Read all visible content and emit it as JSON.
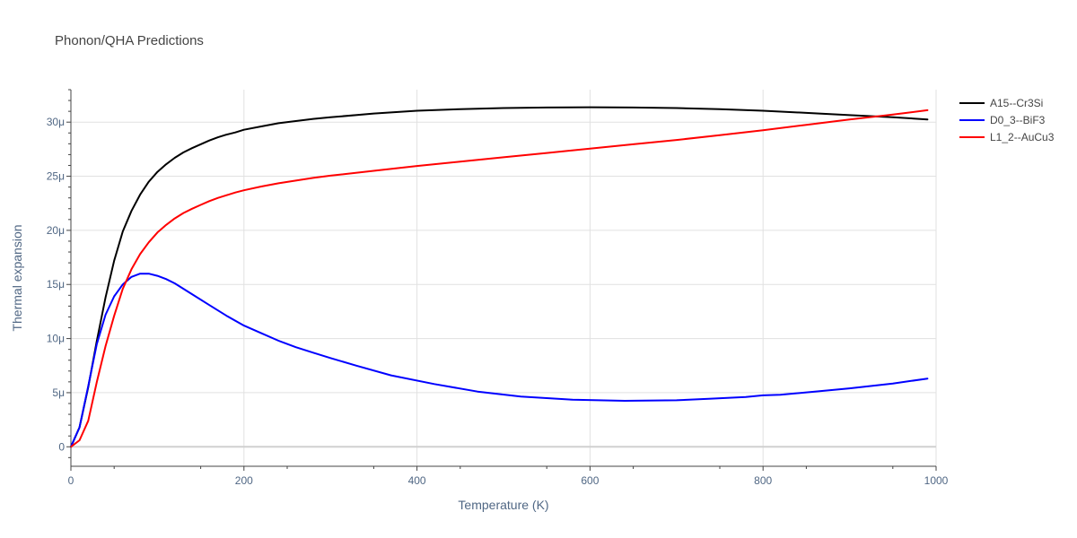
{
  "chart_data": {
    "type": "line",
    "title": "Phonon/QHA Predictions",
    "xlabel": "Temperature (K)",
    "ylabel": "Thermal expansion",
    "xlim": [
      0,
      1000
    ],
    "ylim": [
      -1.8e-06,
      3.3e-05
    ],
    "x_ticks": [
      0,
      200,
      400,
      600,
      800,
      1000
    ],
    "x_tick_labels": [
      "0",
      "200",
      "400",
      "600",
      "800",
      "1000"
    ],
    "y_ticks": [
      0,
      5e-06,
      1e-05,
      1.5e-05,
      2e-05,
      2.5e-05,
      3e-05
    ],
    "y_tick_labels": [
      "0",
      "5μ",
      "10μ",
      "15μ",
      "20μ",
      "25μ",
      "30μ"
    ],
    "grid": true,
    "legend_position": "top-right",
    "series": [
      {
        "name": "A15--Cr3Si",
        "color": "#000000",
        "x": [
          0,
          10,
          20,
          30,
          40,
          50,
          60,
          70,
          80,
          90,
          100,
          110,
          120,
          130,
          140,
          150,
          160,
          170,
          180,
          190,
          200,
          220,
          240,
          260,
          280,
          300,
          350,
          400,
          450,
          500,
          550,
          600,
          650,
          700,
          750,
          800,
          850,
          900,
          950,
          990
        ],
        "y": [
          0,
          1.8e-06,
          5.5e-06,
          9.8e-06,
          1.38e-05,
          1.72e-05,
          1.99e-05,
          2.18e-05,
          2.33e-05,
          2.45e-05,
          2.54e-05,
          2.61e-05,
          2.67e-05,
          2.72e-05,
          2.76e-05,
          2.795e-05,
          2.83e-05,
          2.86e-05,
          2.885e-05,
          2.905e-05,
          2.93e-05,
          2.96e-05,
          2.99e-05,
          3.01e-05,
          3.03e-05,
          3.045e-05,
          3.08e-05,
          3.105e-05,
          3.12e-05,
          3.13e-05,
          3.135e-05,
          3.138e-05,
          3.135e-05,
          3.13e-05,
          3.12e-05,
          3.105e-05,
          3.085e-05,
          3.065e-05,
          3.045e-05,
          3.025e-05
        ]
      },
      {
        "name": "D0_3--BiF3",
        "color": "#0000ff",
        "x": [
          0,
          10,
          20,
          30,
          40,
          50,
          60,
          70,
          80,
          90,
          100,
          110,
          120,
          140,
          160,
          180,
          200,
          220,
          240,
          260,
          280,
          300,
          330,
          370,
          420,
          470,
          520,
          580,
          640,
          700,
          740,
          780,
          800,
          820,
          860,
          900,
          950,
          990
        ],
        "y": [
          0,
          1.8e-06,
          5.6e-06,
          9.5e-06,
          1.22e-05,
          1.39e-05,
          1.5e-05,
          1.57e-05,
          1.6e-05,
          1.6e-05,
          1.58e-05,
          1.55e-05,
          1.51e-05,
          1.41e-05,
          1.31e-05,
          1.21e-05,
          1.12e-05,
          1.05e-05,
          9.8e-06,
          9.2e-06,
          8.7e-06,
          8.2e-06,
          7.5e-06,
          6.6e-06,
          5.8e-06,
          5.1e-06,
          4.65e-06,
          4.35e-06,
          4.25e-06,
          4.3e-06,
          4.45e-06,
          4.6e-06,
          4.75e-06,
          4.8e-06,
          5.1e-06,
          5.4e-06,
          5.85e-06,
          6.3e-06
        ]
      },
      {
        "name": "L1_2--AuCu3",
        "color": "#ff0000",
        "x": [
          0,
          10,
          20,
          30,
          40,
          50,
          60,
          70,
          80,
          90,
          100,
          110,
          120,
          130,
          140,
          150,
          160,
          170,
          180,
          190,
          200,
          220,
          240,
          260,
          280,
          300,
          350,
          400,
          450,
          500,
          550,
          600,
          650,
          700,
          750,
          800,
          850,
          900,
          950,
          990
        ],
        "y": [
          0,
          6e-07,
          2.4e-06,
          6e-06,
          9.3e-06,
          1.21e-05,
          1.46e-05,
          1.64e-05,
          1.78e-05,
          1.89e-05,
          1.98e-05,
          2.05e-05,
          2.11e-05,
          2.16e-05,
          2.2e-05,
          2.235e-05,
          2.27e-05,
          2.3e-05,
          2.325e-05,
          2.35e-05,
          2.37e-05,
          2.405e-05,
          2.435e-05,
          2.46e-05,
          2.485e-05,
          2.505e-05,
          2.55e-05,
          2.595e-05,
          2.635e-05,
          2.675e-05,
          2.715e-05,
          2.755e-05,
          2.795e-05,
          2.835e-05,
          2.88e-05,
          2.925e-05,
          2.975e-05,
          3.025e-05,
          3.07e-05,
          3.11e-05
        ]
      }
    ]
  }
}
